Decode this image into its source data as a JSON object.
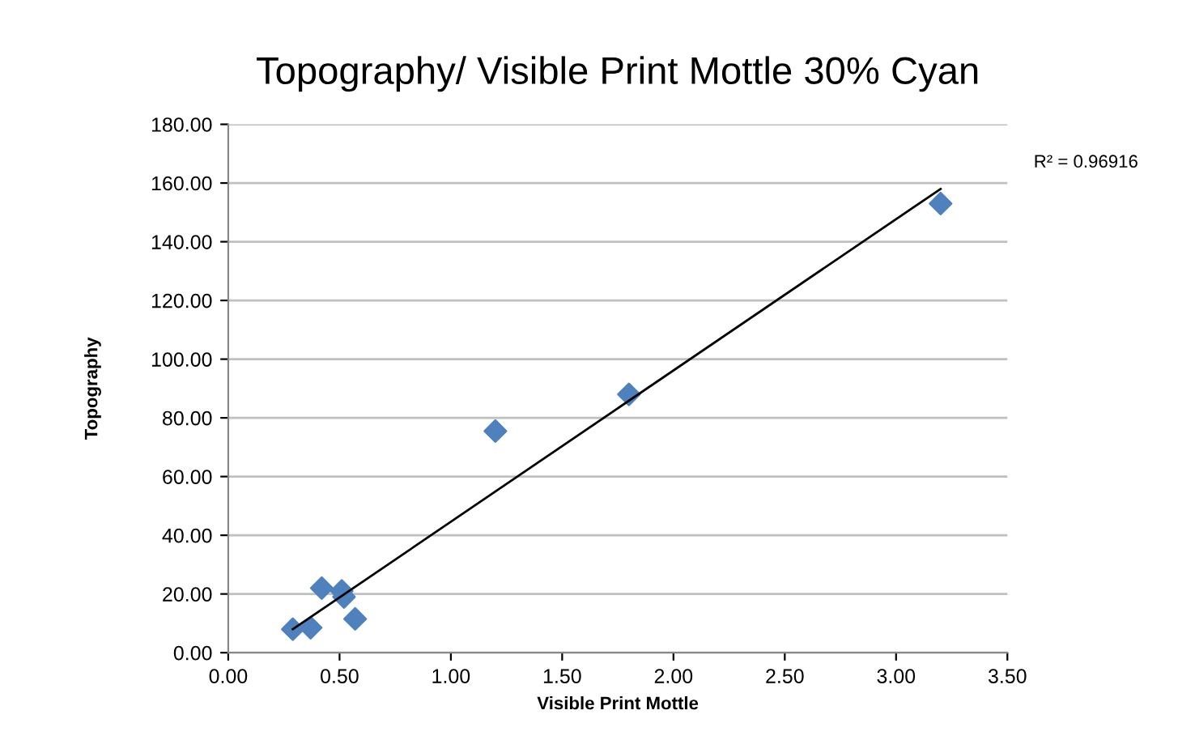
{
  "chart_data": {
    "type": "scatter",
    "title": "Topography/ Visible Print Mottle 30% Cyan",
    "xlabel": "Visible Print Mottle",
    "ylabel": "Topography",
    "series": [
      {
        "color": "#4f81bd",
        "marker": "diamond",
        "x": [
          0.29,
          0.37,
          0.42,
          0.51,
          0.52,
          0.57,
          1.2,
          1.8,
          3.2
        ],
        "values": [
          8,
          8.5,
          22,
          21,
          19,
          11.5,
          75.5,
          88,
          153
        ]
      },
      {
        "type": "line",
        "color": "#000000",
        "marker": "none",
        "x": [
          0.29,
          3.2
        ],
        "values": [
          8,
          158
        ]
      }
    ],
    "annotations": [
      "R² = 0.96916"
    ],
    "xlim": [
      0,
      3.5
    ],
    "xticks": [
      {
        "value": 0,
        "label": "0.00"
      },
      {
        "value": 0.5,
        "label": "0.50"
      },
      {
        "value": 1,
        "label": "1.00"
      },
      {
        "value": 1.5,
        "label": "1.50"
      },
      {
        "value": 2,
        "label": "2.00"
      },
      {
        "value": 2.5,
        "label": "2.50"
      },
      {
        "value": 3,
        "label": "3.00"
      },
      {
        "value": 3.5,
        "label": "3.50"
      }
    ],
    "ylim": [
      0,
      180
    ],
    "yticks": [
      {
        "value": 0,
        "label": "0.00"
      },
      {
        "value": 20,
        "label": "20.00"
      },
      {
        "value": 40,
        "label": "40.00"
      },
      {
        "value": 60,
        "label": "60.00"
      },
      {
        "value": 80,
        "label": "80.00"
      },
      {
        "value": 100,
        "label": "100.00"
      },
      {
        "value": 120,
        "label": "120.00"
      },
      {
        "value": 140,
        "label": "140.00"
      },
      {
        "value": 160,
        "label": "160.00"
      },
      {
        "value": 180,
        "label": "180.00"
      }
    ],
    "grid": "y",
    "legend": false
  }
}
